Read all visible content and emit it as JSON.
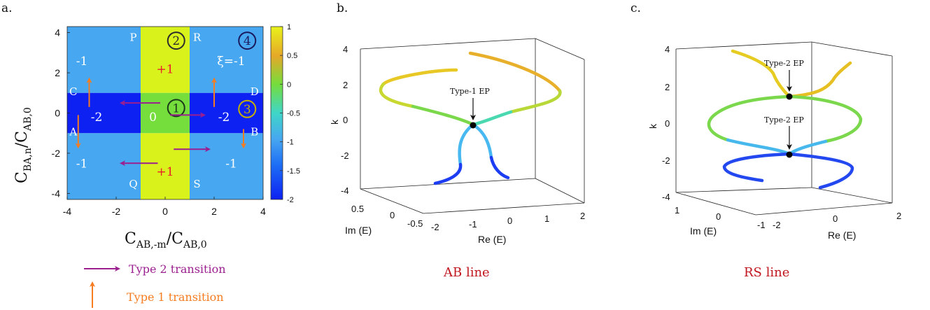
{
  "panel_labels": [
    "a.",
    "b.",
    "c."
  ],
  "chart_data": [
    {
      "type": "heatmap",
      "xlabel": "C",
      "xlabel_sub": "AB,-m",
      "xlabel_den": "/C",
      "xlabel_den_sub": "AB,0",
      "ylabel": "C",
      "ylabel_sub": "BA,n",
      "ylabel_den": "/C",
      "ylabel_den_sub": "AB,0",
      "xlim": [
        -4,
        4
      ],
      "ylim": [
        -4.3,
        4.3
      ],
      "x_ticks": [
        "-4",
        "-2",
        "0",
        "2",
        "4"
      ],
      "x_tick_values": [
        -4,
        -2,
        0,
        2,
        4
      ],
      "y_ticks": [
        "4",
        "2",
        "0",
        "-2",
        "-4"
      ],
      "y_tick_values": [
        4,
        2,
        0,
        -2,
        -4
      ],
      "colorbar": {
        "range": [
          -2,
          1
        ],
        "ticks": [
          "1",
          "0.5",
          "0",
          "-0.5",
          "-1",
          "-1.5",
          "-2"
        ],
        "tick_values": [
          1,
          0.5,
          0,
          -0.5,
          -1,
          -1.5,
          -2
        ]
      },
      "regions": [
        {
          "x": [
            -4,
            -1
          ],
          "y": [
            1,
            4.3
          ],
          "value": -1
        },
        {
          "x": [
            1,
            4
          ],
          "y": [
            1,
            4.3
          ],
          "value": -1
        },
        {
          "x": [
            -4,
            -1
          ],
          "y": [
            -4.3,
            -1
          ],
          "value": -1
        },
        {
          "x": [
            1,
            4
          ],
          "y": [
            -4.3,
            -1
          ],
          "value": -1
        },
        {
          "x": [
            -4,
            -1
          ],
          "y": [
            -1,
            1
          ],
          "value": -2
        },
        {
          "x": [
            1,
            4
          ],
          "y": [
            -1,
            1
          ],
          "value": -2
        },
        {
          "x": [
            -1,
            1
          ],
          "y": [
            1,
            4.3
          ],
          "value": 1
        },
        {
          "x": [
            -1,
            1
          ],
          "y": [
            -4.3,
            -1
          ],
          "value": 1
        },
        {
          "x": [
            -1,
            1
          ],
          "y": [
            -1,
            1
          ],
          "value": 0
        }
      ],
      "region_labels": [
        {
          "text": "-1",
          "x": -3.4,
          "y": 2.6,
          "color": "#ffffff"
        },
        {
          "text": "ξ=-1",
          "x": 2.7,
          "y": 2.6,
          "color": "#ffffff"
        },
        {
          "text": "-1",
          "x": -3.4,
          "y": -2.5,
          "color": "#ffffff"
        },
        {
          "text": "-1",
          "x": 2.7,
          "y": -2.5,
          "color": "#ffffff"
        },
        {
          "text": "-2",
          "x": -2.8,
          "y": -0.2,
          "color": "#ffffff"
        },
        {
          "text": "-2",
          "x": 2.4,
          "y": -0.2,
          "color": "#ffffff"
        },
        {
          "text": "0",
          "x": -0.5,
          "y": -0.2,
          "color": "#ffffff"
        },
        {
          "text": "+1",
          "x": 0,
          "y": 2.2,
          "color": "#e8202a"
        },
        {
          "text": "+1",
          "x": 0,
          "y": -2.9,
          "color": "#e8202a"
        }
      ],
      "corner_labels": [
        {
          "text": "P",
          "x": -1.3,
          "y": 3.8
        },
        {
          "text": "R",
          "x": 1.3,
          "y": 3.8
        },
        {
          "text": "C",
          "x": -3.75,
          "y": 1.1
        },
        {
          "text": "D",
          "x": 3.65,
          "y": 1.1
        },
        {
          "text": "A",
          "x": -3.75,
          "y": -0.9
        },
        {
          "text": "B",
          "x": 3.65,
          "y": -0.9
        },
        {
          "text": "Q",
          "x": -1.3,
          "y": -3.5
        },
        {
          "text": "S",
          "x": 1.3,
          "y": -3.5
        }
      ],
      "circled_labels": [
        {
          "text": "2",
          "x": 0.45,
          "y": 3.6,
          "color": "#2c2c2c"
        },
        {
          "text": "4",
          "x": 3.35,
          "y": 3.6,
          "color": "#1a1a5e"
        },
        {
          "text": "1",
          "x": 0.45,
          "y": 0.25,
          "color": "#1a3a1a"
        },
        {
          "text": "3",
          "x": 3.35,
          "y": 0.2,
          "color": "#c8b000"
        }
      ],
      "arrows": [
        {
          "type": "Type 1 transition",
          "from": [
            -3.1,
            0.3
          ],
          "to": [
            -3.1,
            1.7
          ]
        },
        {
          "type": "Type 1 transition",
          "from": [
            2.0,
            0.3
          ],
          "to": [
            2.0,
            1.7
          ]
        },
        {
          "type": "Type 1 transition",
          "from": [
            -3.55,
            -0.1
          ],
          "to": [
            -3.55,
            -1.7
          ]
        },
        {
          "type": "Type 1 transition",
          "from": [
            3.2,
            -0.8
          ],
          "to": [
            3.2,
            -1.7
          ]
        },
        {
          "type": "Type 2 transition",
          "from": [
            -0.2,
            0.5
          ],
          "to": [
            -1.8,
            0.5
          ]
        },
        {
          "type": "Type 2 transition",
          "from": [
            0.2,
            -0.1
          ],
          "to": [
            1.6,
            -0.1
          ]
        },
        {
          "type": "Type 2 transition",
          "from": [
            -0.3,
            -2.5
          ],
          "to": [
            -1.8,
            -2.5
          ]
        },
        {
          "type": "Type 2 transition",
          "from": [
            0.35,
            -1.8
          ],
          "to": [
            1.8,
            -1.8
          ]
        }
      ]
    },
    {
      "type": "line",
      "title": "AB line",
      "xlabel": "Re (E)",
      "ylabel": "Im (E)",
      "zlabel": "k",
      "x_ticks": [
        "-2",
        "-1",
        "0",
        "1",
        "2"
      ],
      "y_ticks": [
        "0.5",
        "0",
        "-0.5"
      ],
      "z_ticks": [
        "4",
        "2",
        "0",
        "-2",
        "-4"
      ],
      "annotations": [
        "Type-1 EP"
      ]
    },
    {
      "type": "line",
      "title": "RS line",
      "xlabel": "Re (E)",
      "ylabel": "Im (E)",
      "zlabel": "k",
      "x_ticks": [
        "-2",
        "0",
        "2"
      ],
      "y_ticks": [
        "1",
        "0",
        "-1"
      ],
      "z_ticks": [
        "4",
        "2",
        "0",
        "-2",
        "-4"
      ],
      "annotations": [
        "Type-2 EP",
        "Type-2 EP"
      ]
    }
  ],
  "legend": [
    {
      "label": "Type 2 transition",
      "color": "#9b1f8f"
    },
    {
      "label": "Type 1 transition",
      "color": "#f57c20"
    }
  ],
  "colors": {
    "light_blue": "#47a7f0",
    "dark_blue": "#0d21f2",
    "yellow": "#daf21c",
    "green": "#75dd3c",
    "type1_arrow": "#f57c20",
    "type2_arrow": "#9b1f8f",
    "caption_red": "#c0161e"
  }
}
